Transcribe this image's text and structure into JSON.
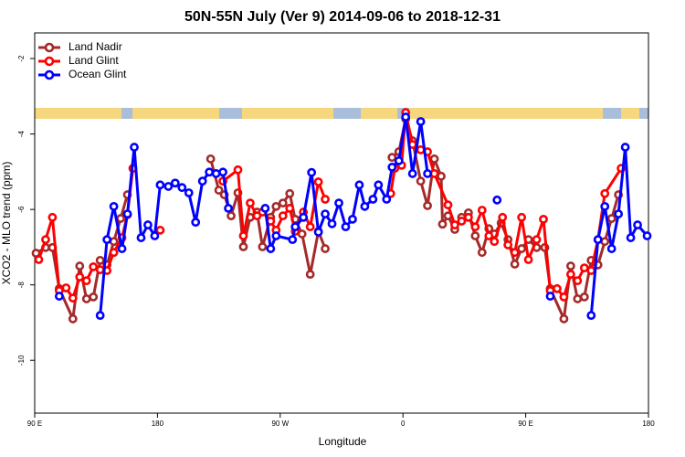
{
  "chart_data": {
    "type": "line",
    "title": "50N-55N July (Ver 9)   2014-09-06 to 2018-12-31",
    "x_label": "Longitude",
    "y_label": "XCO2 - MLO trend (ppm)",
    "xlim": [
      90,
      540
    ],
    "ylim": [
      -11.4,
      -1.32
    ],
    "xticks": [
      {
        "value": 90,
        "label": "90 E"
      },
      {
        "value": 180,
        "label": "180"
      },
      {
        "value": 270,
        "label": "90 W"
      },
      {
        "value": 360,
        "label": "0"
      },
      {
        "value": 450,
        "label": "90 E"
      },
      {
        "value": 540,
        "label": "180"
      }
    ],
    "yticks": [
      -2,
      -4,
      -6,
      -8,
      -10
    ],
    "legend": "top-left",
    "series": [
      {
        "name": "Land Nadir",
        "color": "#a52a2a",
        "x": [
          91,
          98,
          103,
          108,
          118,
          123,
          128,
          133,
          138,
          143,
          148,
          153,
          158,
          null,
          219,
          225,
          229,
          234,
          239,
          243,
          248,
          253,
          257,
          263,
          267,
          272,
          277,
          281,
          286,
          292,
          298,
          303,
          null,
          352,
          357,
          362,
          367,
          373,
          378,
          383,
          388,
          389,
          393,
          398,
          403,
          408,
          413,
          418,
          423,
          427,
          432,
          437,
          442,
          447,
          452,
          458,
          464,
          468,
          478,
          483,
          488,
          493,
          498,
          503,
          508,
          513,
          518
        ],
        "values": [
          -7.16,
          -7.01,
          -7.01,
          -8.1,
          -8.9,
          -7.5,
          -8.37,
          -8.32,
          -7.35,
          -7.47,
          -6.85,
          -6.24,
          -5.61,
          null,
          -4.66,
          -5.49,
          -5.61,
          -6.17,
          -5.56,
          -6.99,
          -6.21,
          -6.07,
          -6.99,
          -6.21,
          -5.92,
          -5.83,
          -5.58,
          -6.26,
          -6.65,
          -7.72,
          -6.58,
          -7.04,
          null,
          -4.62,
          -4.47,
          -3.6,
          -4.18,
          -5.25,
          -5.9,
          -4.66,
          -5.12,
          -6.39,
          -6.17,
          -6.53,
          -6.21,
          -6.09,
          -6.7,
          -7.14,
          -6.51,
          -6.65,
          -6.36,
          -6.8,
          -7.45,
          -7.04,
          -6.8,
          -7.01,
          -7.01,
          -8.1,
          -8.9,
          -7.5,
          -8.37,
          -8.32,
          -7.35,
          -7.47,
          -6.85,
          -6.24,
          -5.61
        ]
      },
      {
        "name": "Land Glint",
        "color": "#ff0000",
        "x": [
          93,
          98,
          103,
          108,
          113,
          118,
          123,
          128,
          133,
          138,
          143,
          148,
          154,
          158,
          162,
          null,
          182,
          null,
          228,
          239,
          243,
          248,
          253,
          257,
          263,
          267,
          272,
          277,
          281,
          287,
          292,
          298,
          303,
          null,
          351,
          354,
          359,
          362,
          367,
          373,
          378,
          383,
          393,
          398,
          403,
          408,
          413,
          418,
          423,
          427,
          433,
          437,
          442,
          447,
          452,
          458,
          463,
          468,
          473,
          478,
          483,
          488,
          493,
          498,
          503,
          508,
          520
        ],
        "values": [
          -7.33,
          -6.8,
          -6.21,
          -8.15,
          -8.08,
          -8.35,
          -7.79,
          -7.89,
          -7.52,
          -7.6,
          -7.62,
          -7.14,
          -6.75,
          -6.14,
          -4.91,
          null,
          -6.55,
          null,
          -5.25,
          -4.95,
          -6.7,
          -5.83,
          -6.17,
          -6.07,
          -6.31,
          -6.55,
          -6.17,
          -5.97,
          -6.58,
          -6.07,
          -6.46,
          -5.27,
          -5.73,
          null,
          -5.58,
          -4.91,
          -4.83,
          -3.43,
          -4.28,
          -4.42,
          -4.47,
          -5.05,
          -5.88,
          -6.41,
          -6.31,
          -6.21,
          -6.46,
          -6.02,
          -6.7,
          -6.85,
          -6.21,
          -6.94,
          -7.14,
          -6.21,
          -7.33,
          -6.8,
          -6.26,
          -8.15,
          -8.1,
          -8.32,
          -7.72,
          -7.89,
          -7.55,
          -7.62,
          -6.8,
          -5.58,
          -4.91
        ]
      },
      {
        "name": "Ocean Glint",
        "color": "#0000ff",
        "x": [
          108,
          null,
          138,
          143,
          148,
          154,
          158,
          163,
          168,
          173,
          178,
          182,
          188,
          193,
          198,
          203,
          208,
          213,
          218,
          223,
          228,
          232,
          null,
          259,
          263,
          267,
          279,
          281,
          287,
          293,
          298,
          303,
          308,
          313,
          318,
          323,
          328,
          332,
          338,
          342,
          348,
          352,
          357,
          362,
          367,
          373,
          378,
          null,
          429,
          null,
          468,
          null,
          498,
          503,
          508,
          513,
          518,
          523,
          527,
          532,
          539
        ],
        "values": [
          -8.3,
          null,
          -8.81,
          -6.8,
          -5.92,
          -7.04,
          -6.12,
          -4.35,
          -6.75,
          -6.41,
          -6.7,
          -5.35,
          -5.39,
          -5.3,
          -5.42,
          -5.56,
          -6.34,
          -5.25,
          -5.01,
          -5.05,
          -5.01,
          -5.97,
          null,
          -5.97,
          -7.04,
          -6.7,
          -6.8,
          -6.46,
          -6.21,
          -5.02,
          -6.6,
          -6.12,
          -6.38,
          -5.83,
          -6.46,
          -6.26,
          -5.35,
          -5.92,
          -5.73,
          -5.35,
          -5.73,
          -4.88,
          -4.71,
          -3.55,
          -5.05,
          -3.67,
          -5.05,
          null,
          -5.75,
          null,
          -8.3,
          null,
          -8.81,
          -6.8,
          -5.92,
          -7.04,
          -6.12,
          -4.35,
          -6.75,
          -6.41,
          -6.7
        ]
      }
    ]
  }
}
